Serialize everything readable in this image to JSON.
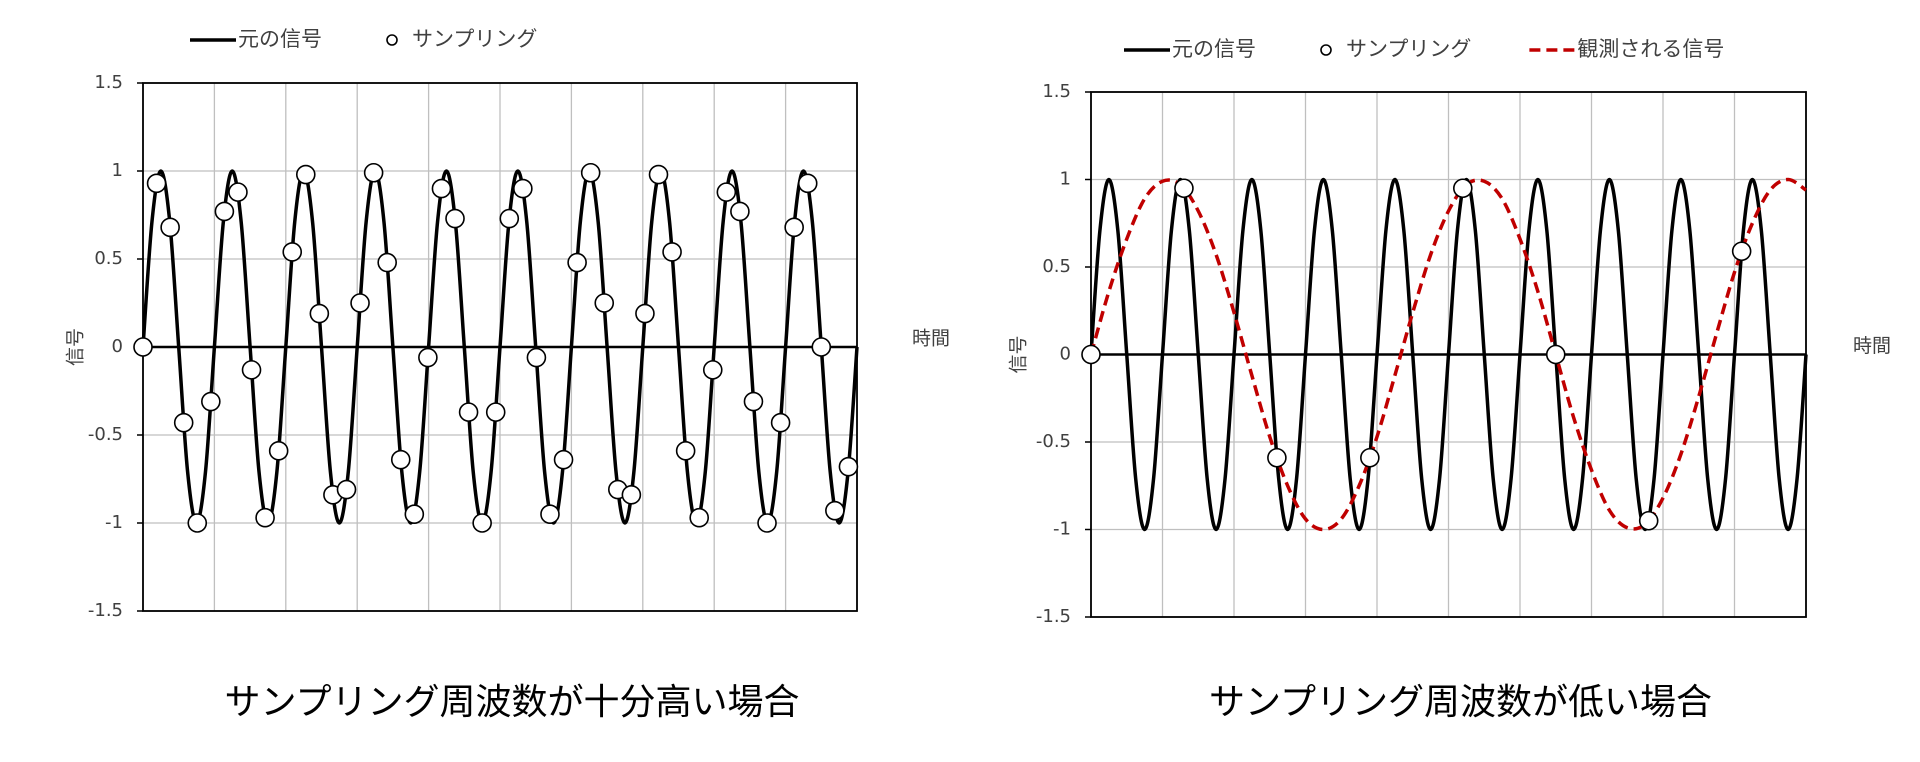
{
  "chart_data": [
    {
      "type": "line",
      "caption": "サンプリング周波数が十分高い場合",
      "y_label": "信号",
      "x_label": "時間",
      "xlim": [
        0,
        10
      ],
      "xticks": [
        0,
        1,
        2,
        3,
        4,
        5,
        6,
        7,
        8,
        9,
        10
      ],
      "xtick_labels": false,
      "ylim": [
        -1.5,
        1.5
      ],
      "yticks": [
        -1.5,
        -1,
        -0.5,
        0,
        0.5,
        1,
        1.5
      ],
      "grid": true,
      "series": [
        {
          "name": "元の信号",
          "color": "#000000",
          "style": "solid",
          "x": [
            0,
            0.125,
            0.25,
            0.375,
            0.5,
            0.625,
            0.75,
            0.875,
            1,
            1.125,
            1.25,
            1.375,
            1.5,
            1.625,
            1.75,
            1.875,
            2,
            2.125,
            2.25,
            2.375,
            2.5,
            2.625,
            2.75,
            2.875,
            3,
            3.125,
            3.25,
            3.375,
            3.5,
            3.625,
            3.75,
            3.875,
            4,
            4.125,
            4.25,
            4.375,
            4.5,
            4.625,
            4.75,
            4.875,
            5,
            5.125,
            5.25,
            5.375,
            5.5,
            5.625,
            5.75,
            5.875,
            6,
            6.125,
            6.25,
            6.375,
            6.5,
            6.625,
            6.75,
            6.875,
            7,
            7.125,
            7.25,
            7.375,
            7.5,
            7.625,
            7.75,
            7.875,
            8,
            8.125,
            8.25,
            8.375,
            8.5,
            8.625,
            8.75,
            8.875,
            9,
            9.125,
            9.25,
            9.375,
            9.5,
            9.625,
            9.75,
            9.875,
            10
          ],
          "values": [
            0,
            0.71,
            1,
            0.71,
            0,
            -0.71,
            -1,
            -0.71,
            0,
            0.71,
            1,
            0.71,
            0,
            -0.71,
            -1,
            -0.71,
            0,
            0.71,
            1,
            0.71,
            0,
            -0.71,
            -1,
            -0.71,
            0,
            0.71,
            1,
            0.71,
            0,
            -0.71,
            -1,
            -0.71,
            0,
            0.71,
            1,
            0.71,
            0,
            -0.71,
            -1,
            -0.71,
            0,
            0.71,
            1,
            0.71,
            0,
            -0.71,
            -1,
            -0.71,
            0,
            0.71,
            1,
            0.71,
            0,
            -0.71,
            -1,
            -0.71,
            0,
            0.71,
            1,
            0.71,
            0,
            -0.71,
            -1,
            -0.71,
            0,
            0.71,
            1,
            0.71,
            0,
            -0.71,
            -1,
            -0.71,
            0,
            0.71,
            1,
            0.71,
            0,
            -0.71,
            -1,
            -0.71,
            0
          ]
        },
        {
          "name": "サンプリング",
          "color": "#000000",
          "style": "marker",
          "x": [
            0,
            0.19,
            0.38,
            0.57,
            0.76,
            0.95,
            1.14,
            1.33,
            1.52,
            1.71,
            1.9,
            2.09,
            2.28,
            2.47,
            2.66,
            2.85,
            3.04,
            3.23,
            3.42,
            3.61,
            3.8,
            3.99,
            4.18,
            4.37,
            4.56,
            4.75,
            4.94,
            5.13,
            5.32,
            5.51,
            5.7,
            5.89,
            6.08,
            6.27,
            6.46,
            6.65,
            6.84,
            7.03,
            7.22,
            7.41,
            7.6,
            7.79,
            7.98,
            8.17,
            8.36,
            8.55,
            8.74,
            8.93,
            9.12,
            9.31,
            9.5,
            9.69,
            9.88
          ],
          "values": [
            0,
            0.93,
            0.68,
            -0.43,
            -1,
            -0.31,
            0.77,
            0.88,
            -0.13,
            -0.97,
            -0.59,
            0.54,
            0.98,
            0.19,
            -0.84,
            -0.81,
            0.25,
            0.99,
            0.48,
            -0.64,
            -0.95,
            -0.06,
            0.9,
            0.73,
            -0.37,
            -1,
            -0.37,
            0.73,
            0.9,
            -0.06,
            -0.95,
            -0.64,
            0.48,
            0.99,
            0.25,
            -0.81,
            -0.84,
            0.19,
            0.98,
            0.54,
            -0.59,
            -0.97,
            -0.13,
            0.88,
            0.77,
            -0.31,
            -1,
            -0.43,
            0.68,
            0.93,
            0,
            -0.93,
            -0.68
          ]
        }
      ]
    },
    {
      "type": "line",
      "caption": "サンプリング周波数が低い場合",
      "y_label": "信号",
      "x_label": "時間",
      "xlim": [
        0,
        10
      ],
      "xticks": [
        0,
        1,
        2,
        3,
        4,
        5,
        6,
        7,
        8,
        9,
        10
      ],
      "xtick_labels": false,
      "ylim": [
        -1.5,
        1.5
      ],
      "yticks": [
        -1.5,
        -1,
        -0.5,
        0,
        0.5,
        1,
        1.5
      ],
      "grid": true,
      "series": [
        {
          "name": "元の信号",
          "color": "#000000",
          "style": "solid",
          "x": [
            0,
            0.125,
            0.25,
            0.375,
            0.5,
            0.625,
            0.75,
            0.875,
            1,
            1.125,
            1.25,
            1.375,
            1.5,
            1.625,
            1.75,
            1.875,
            2,
            2.125,
            2.25,
            2.375,
            2.5,
            2.625,
            2.75,
            2.875,
            3,
            3.125,
            3.25,
            3.375,
            3.5,
            3.625,
            3.75,
            3.875,
            4,
            4.125,
            4.25,
            4.375,
            4.5,
            4.625,
            4.75,
            4.875,
            5,
            5.125,
            5.25,
            5.375,
            5.5,
            5.625,
            5.75,
            5.875,
            6,
            6.125,
            6.25,
            6.375,
            6.5,
            6.625,
            6.75,
            6.875,
            7,
            7.125,
            7.25,
            7.375,
            7.5,
            7.625,
            7.75,
            7.875,
            8,
            8.125,
            8.25,
            8.375,
            8.5,
            8.625,
            8.75,
            8.875,
            9,
            9.125,
            9.25,
            9.375,
            9.5,
            9.625,
            9.75,
            9.875,
            10
          ],
          "values": [
            0,
            0.71,
            1,
            0.71,
            0,
            -0.71,
            -1,
            -0.71,
            0,
            0.71,
            1,
            0.71,
            0,
            -0.71,
            -1,
            -0.71,
            0,
            0.71,
            1,
            0.71,
            0,
            -0.71,
            -1,
            -0.71,
            0,
            0.71,
            1,
            0.71,
            0,
            -0.71,
            -1,
            -0.71,
            0,
            0.71,
            1,
            0.71,
            0,
            -0.71,
            -1,
            -0.71,
            0,
            0.71,
            1,
            0.71,
            0,
            -0.71,
            -1,
            -0.71,
            0,
            0.71,
            1,
            0.71,
            0,
            -0.71,
            -1,
            -0.71,
            0,
            0.71,
            1,
            0.71,
            0,
            -0.71,
            -1,
            -0.71,
            0,
            0.71,
            1,
            0.71,
            0,
            -0.71,
            -1,
            -0.71,
            0,
            0.71,
            1,
            0.71,
            0,
            -0.71,
            -1,
            -0.71,
            0
          ]
        },
        {
          "name": "サンプリング",
          "color": "#000000",
          "style": "marker",
          "x": [
            0,
            1.3,
            2.6,
            3.9,
            5.2,
            6.5,
            7.8,
            9.1
          ],
          "values": [
            0,
            0.95,
            -0.59,
            -0.59,
            0.95,
            0,
            -0.95,
            0.59
          ]
        },
        {
          "name": "観測される信号",
          "color": "#c00000",
          "style": "dash",
          "x": [
            0,
            0.25,
            0.5,
            0.75,
            1,
            1.25,
            1.5,
            1.75,
            2,
            2.25,
            2.5,
            2.75,
            3,
            3.25,
            3.5,
            3.75,
            4,
            4.25,
            4.5,
            4.75,
            5,
            5.25,
            5.5,
            5.75,
            6,
            6.25,
            6.5,
            6.75,
            7,
            7.25,
            7.5,
            7.75,
            8,
            8.25,
            8.5,
            8.75,
            9,
            9.25,
            9.5,
            9.75,
            10
          ],
          "values": [
            0,
            0.36,
            0.66,
            0.89,
            0.99,
            0.97,
            0.82,
            0.57,
            0.24,
            -0.12,
            -0.47,
            -0.75,
            -0.94,
            -1,
            -0.94,
            -0.75,
            -0.47,
            -0.12,
            0.24,
            0.57,
            0.82,
            0.97,
            0.99,
            0.89,
            0.66,
            0.36,
            0,
            -0.36,
            -0.66,
            -0.89,
            -0.99,
            -0.97,
            -0.82,
            -0.57,
            -0.24,
            0.12,
            0.47,
            0.75,
            0.94,
            1,
            0.94
          ]
        }
      ]
    }
  ]
}
